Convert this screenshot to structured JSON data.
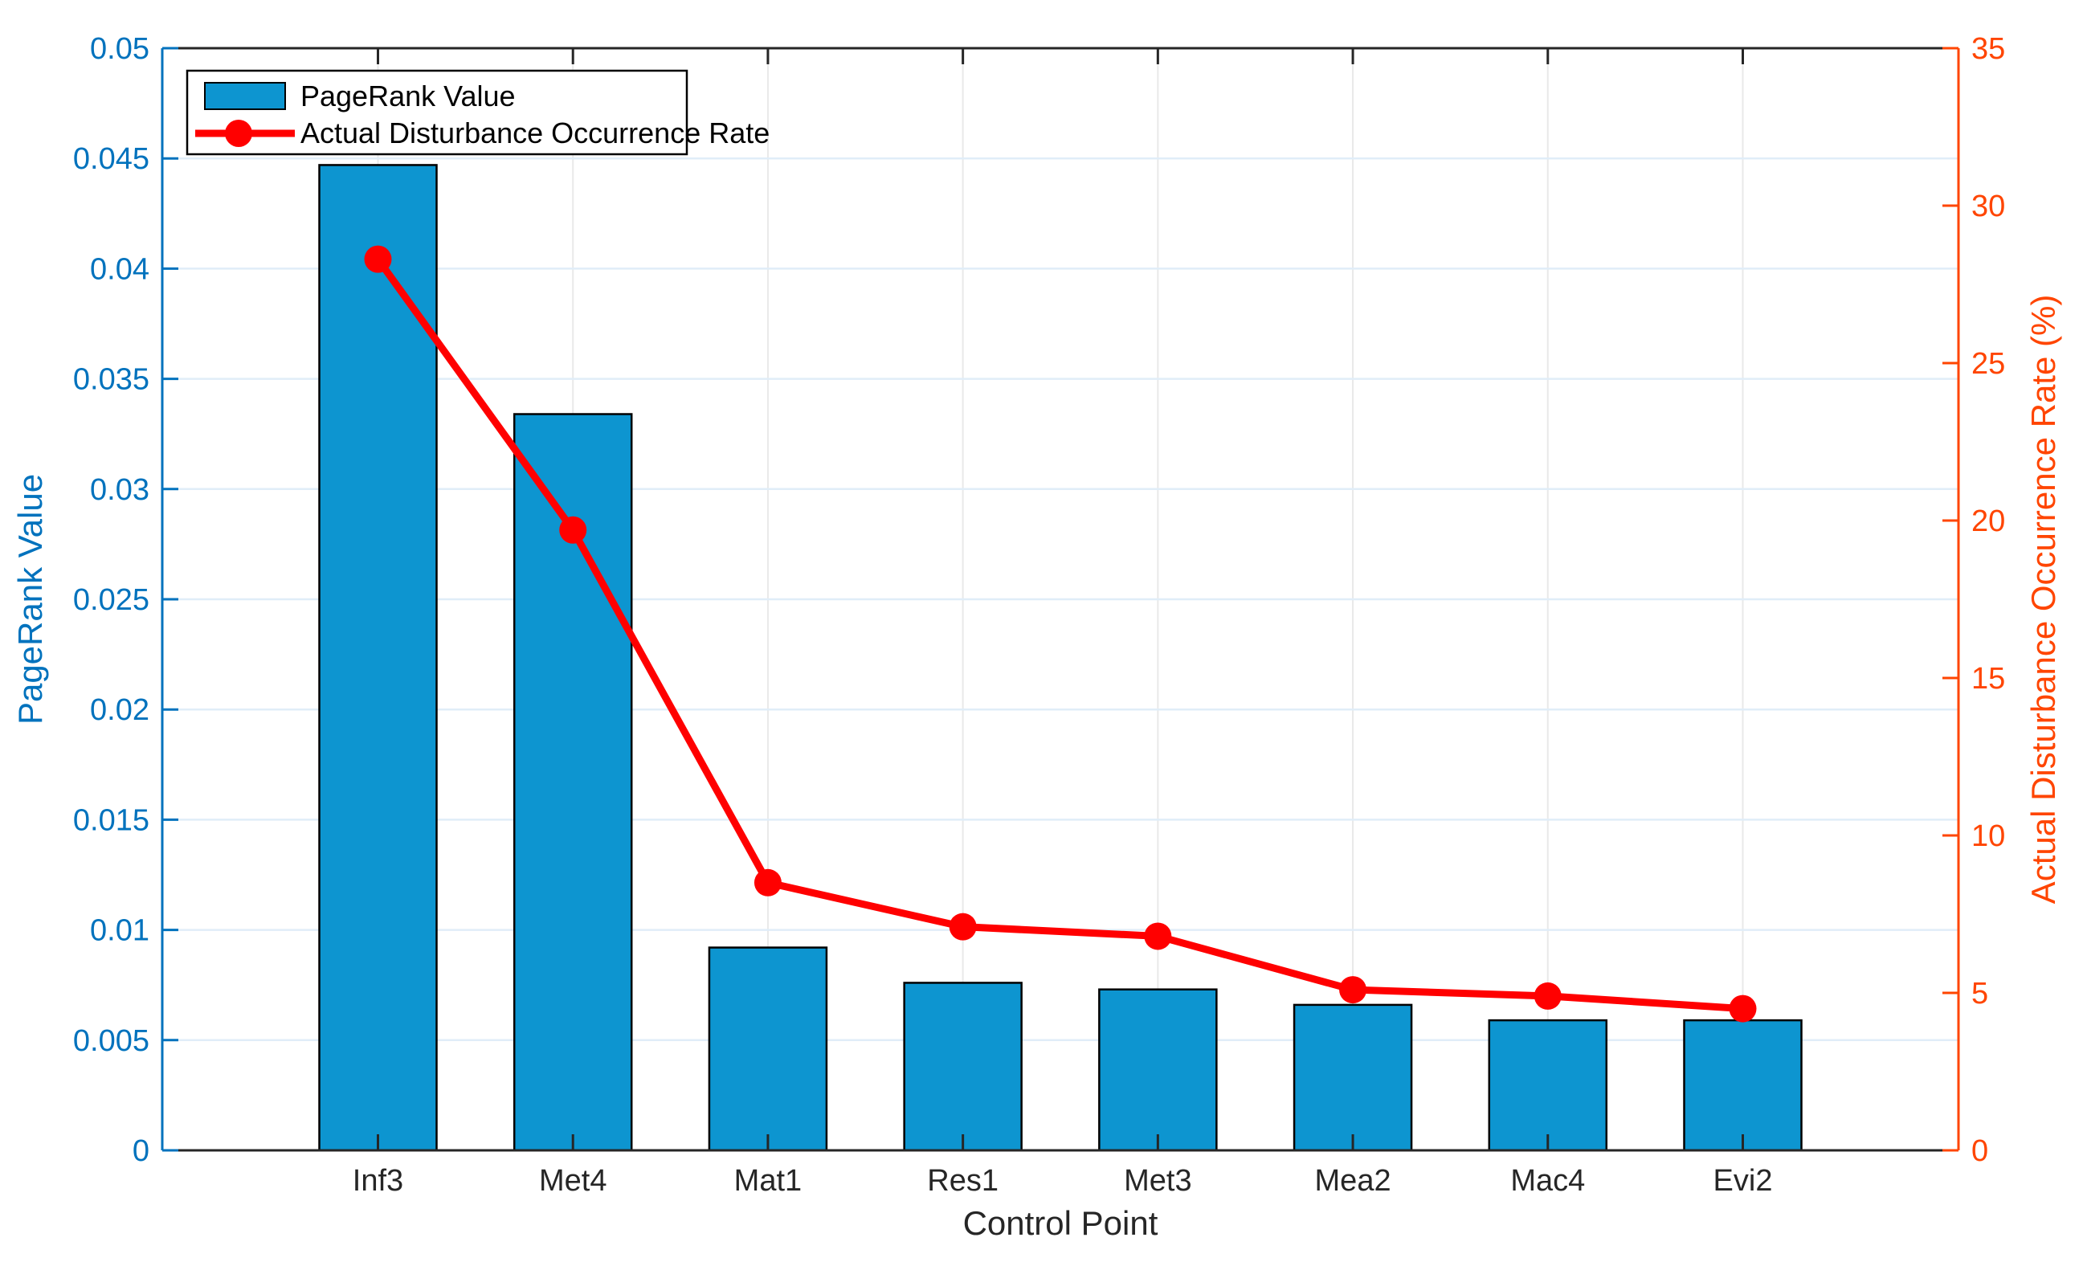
{
  "chart_data": {
    "type": "bar+line dual-axis",
    "categories": [
      "Inf3",
      "Met4",
      "Mat1",
      "Res1",
      "Met3",
      "Mea2",
      "Mac4",
      "Evi2"
    ],
    "series": [
      {
        "name": "PageRank Value",
        "type": "bar",
        "axis": "left",
        "color": "#0D95D0",
        "edge_color": "#000000",
        "values": [
          0.0447,
          0.0334,
          0.0092,
          0.0076,
          0.0073,
          0.0066,
          0.0059,
          0.0059
        ]
      },
      {
        "name": "Actual Disturbance Occurrence Rate",
        "type": "line",
        "axis": "right",
        "color": "#FF0000",
        "marker": "filled-circle",
        "values": [
          28.3,
          19.7,
          8.5,
          7.1,
          6.8,
          5.1,
          4.9,
          4.5
        ]
      }
    ],
    "xlabel": "Control Point",
    "left_axis": {
      "label": "PageRank Value",
      "min": 0,
      "max": 0.05,
      "tick_step": 0.005,
      "color": "#0072BD",
      "tick_labels": [
        "0",
        "0.005",
        "0.01",
        "0.015",
        "0.02",
        "0.025",
        "0.03",
        "0.035",
        "0.04",
        "0.045",
        "0.05"
      ]
    },
    "right_axis": {
      "label": "Actual Disturbance Occurrence Rate (%)",
      "min": 0,
      "max": 35,
      "tick_step": 5,
      "color": "#FF4500",
      "tick_labels": [
        "0",
        "5",
        "10",
        "15",
        "20",
        "25",
        "30",
        "35"
      ]
    },
    "legend": {
      "position": "top-left",
      "entries": [
        "PageRank Value",
        "Actual Disturbance Occurrence Rate"
      ]
    },
    "grid": true,
    "grid_h_color": "#E0EDF8",
    "grid_v_color": "#E9E9E9",
    "axis_dark_color": "#262626"
  }
}
